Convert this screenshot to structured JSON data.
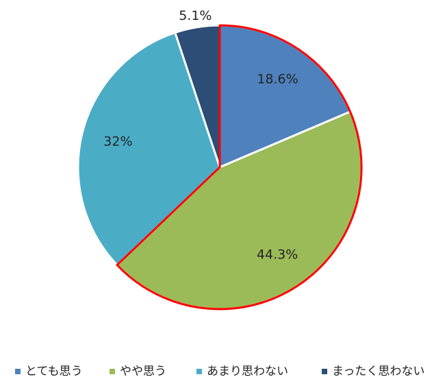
{
  "chart_data": {
    "type": "pie",
    "categories": [
      "とても思う",
      "やや思う",
      "あまり思わない",
      "まったく思わない"
    ],
    "values": [
      18.6,
      44.3,
      32,
      5.1
    ],
    "value_labels": [
      "18.6%",
      "44.3%",
      "32%",
      "5.1%"
    ],
    "colors": [
      "#4f81bd",
      "#9bbb59",
      "#4bacc6",
      "#2c4d75"
    ],
    "highlight": [
      0,
      1
    ],
    "highlight_color": "#ff0000",
    "legend": "bottom"
  }
}
